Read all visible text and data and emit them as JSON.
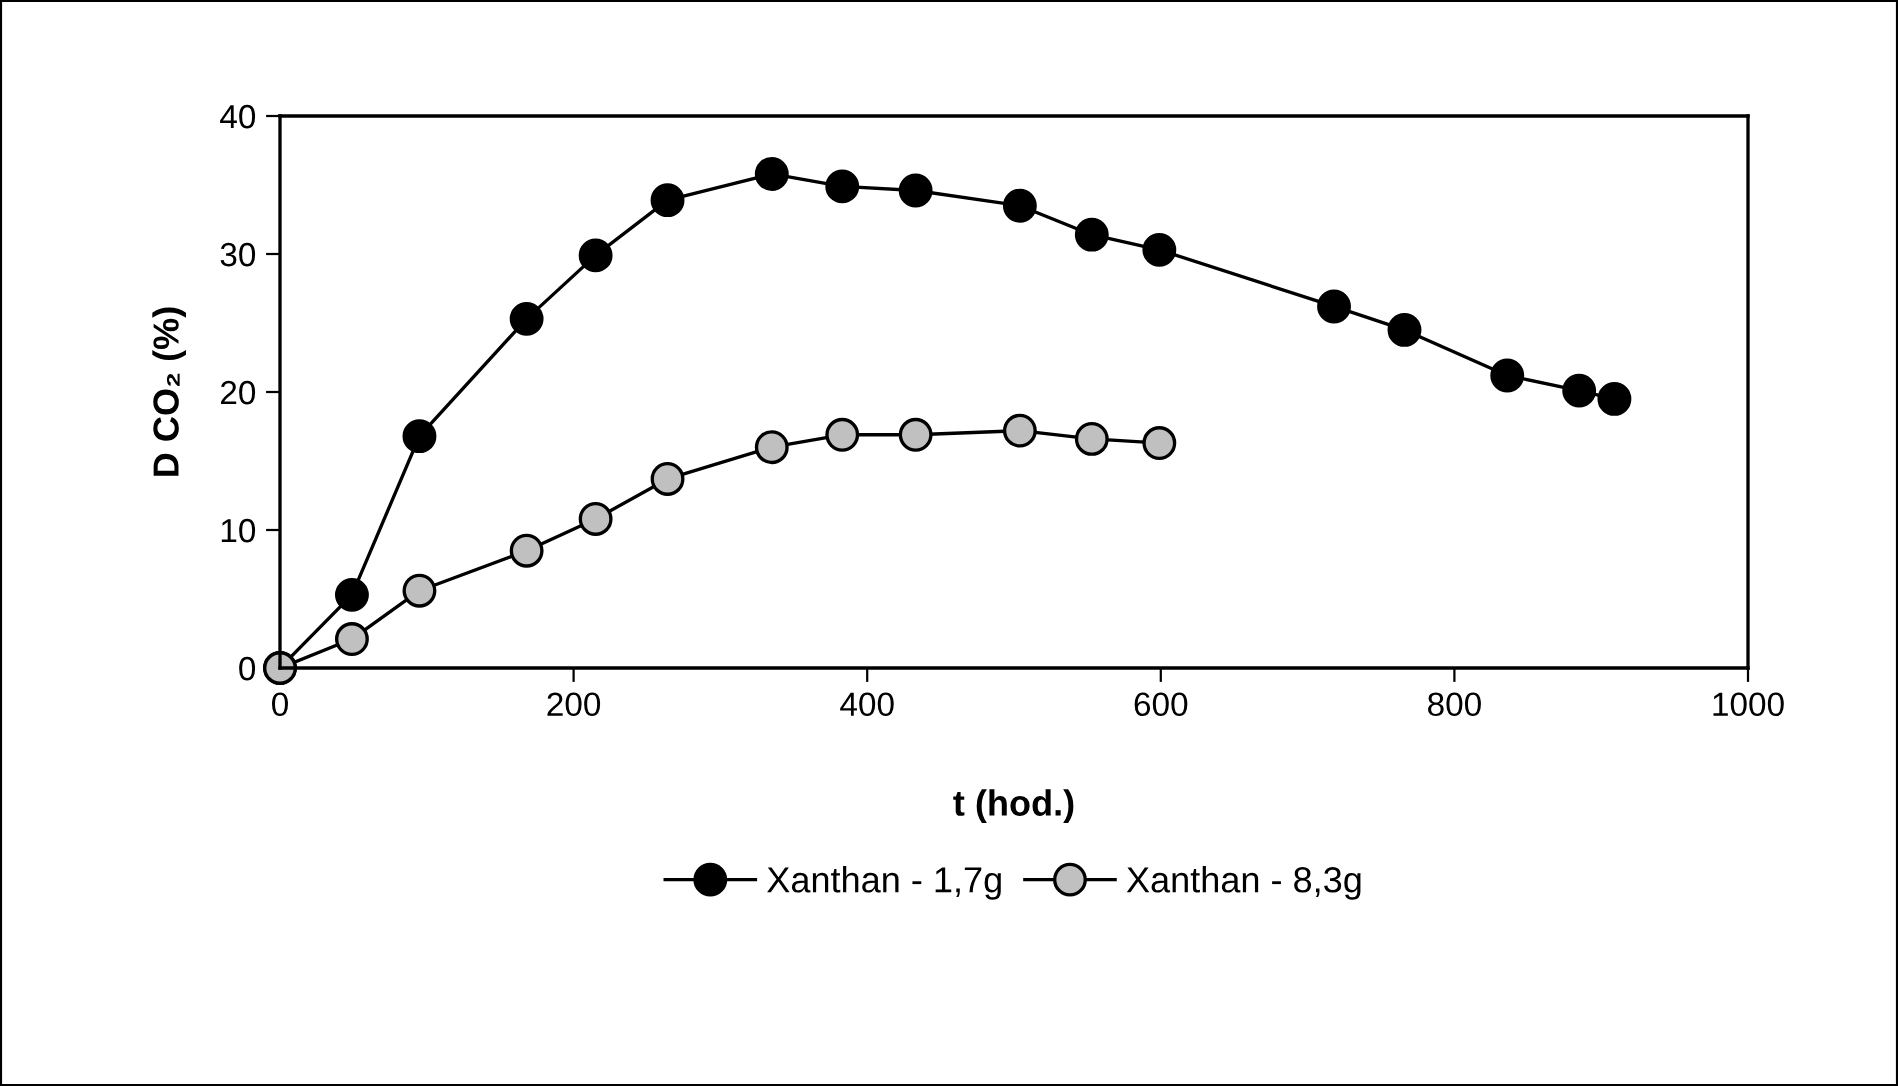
{
  "chart_data": {
    "type": "line",
    "xlabel": "t (hod.)",
    "ylabel": "D CO₂ (%)",
    "xlim": [
      0,
      1000
    ],
    "xticks": [
      0,
      200,
      400,
      600,
      800,
      1000
    ],
    "ylim": [
      0,
      40
    ],
    "yticks": [
      0,
      10,
      20,
      30,
      40
    ],
    "grid": false,
    "legend": "bottom",
    "marker": "circle",
    "line_style": "solid",
    "series": [
      {
        "name": "Xanthan - 1,7g",
        "color": "#000000",
        "x": [
          0,
          49,
          95,
          168,
          215,
          264,
          335,
          383,
          433,
          504,
          553,
          599,
          718,
          766,
          836,
          885,
          909
        ],
        "values": [
          0,
          5.3,
          16.8,
          25.3,
          29.9,
          33.9,
          35.8,
          34.9,
          34.6,
          33.5,
          31.4,
          30.3,
          26.2,
          24.5,
          21.2,
          20.1,
          19.5
        ]
      },
      {
        "name": "Xanthan - 8,3g",
        "color": "#c0c0c0",
        "x": [
          0,
          49,
          95,
          168,
          215,
          264,
          335,
          383,
          433,
          504,
          553,
          599
        ],
        "values": [
          0,
          2.1,
          5.6,
          8.5,
          10.8,
          13.7,
          16.0,
          16.9,
          16.9,
          17.2,
          16.6,
          16.3
        ]
      }
    ]
  }
}
